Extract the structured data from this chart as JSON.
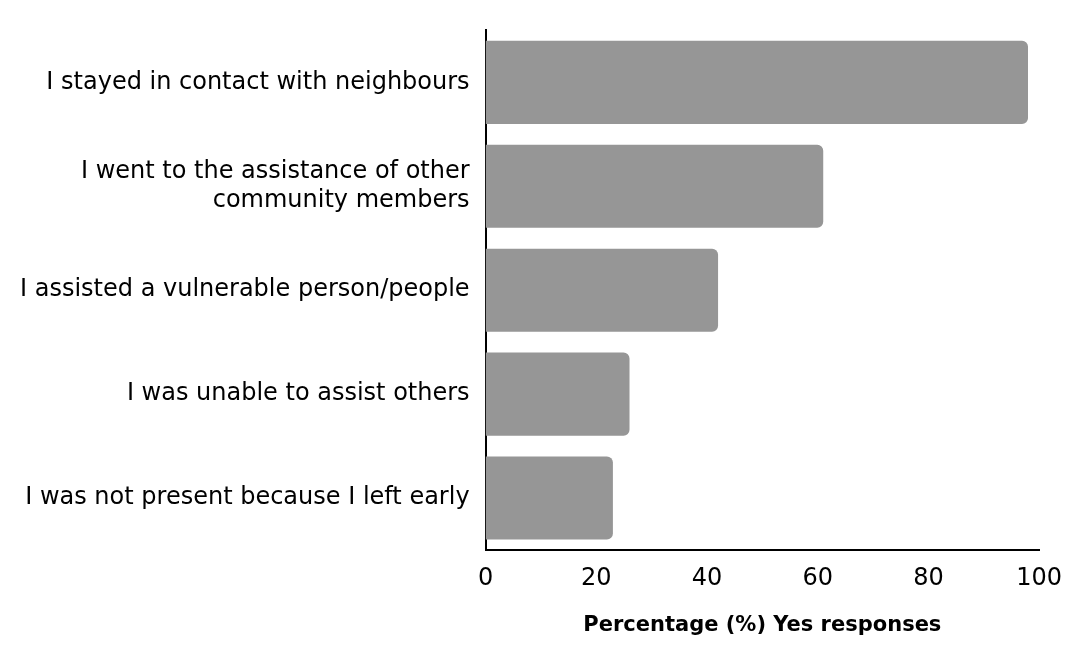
{
  "chart_data": {
    "type": "bar",
    "orientation": "horizontal",
    "xlabel": "Percentage (%) Yes responses",
    "categories": [
      "I stayed in contact with neighbours",
      "I went to the assistance of other community members",
      "I assisted a vulnerable person/people",
      "I was unable to assist others",
      "I was not present because I left early"
    ],
    "values": [
      98,
      61,
      42,
      26,
      23
    ],
    "color": "#969696",
    "xlim": [
      0,
      100
    ],
    "xticks": [
      0,
      20,
      40,
      60,
      80,
      100
    ],
    "grid": false,
    "legend": false
  }
}
